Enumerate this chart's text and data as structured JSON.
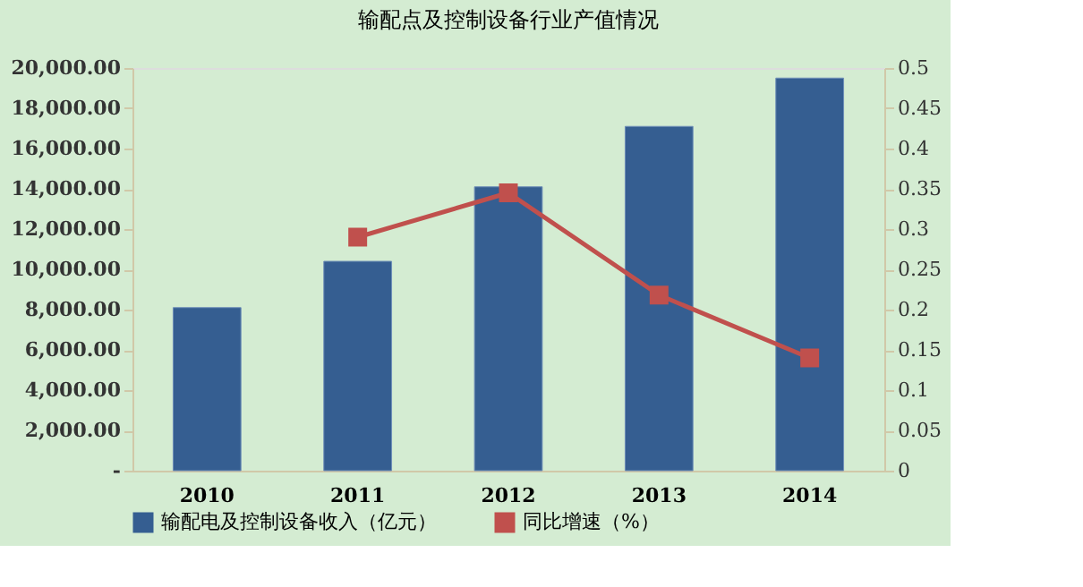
{
  "chart_data": {
    "type": "bar",
    "title": "输配点及控制设备行业产值情况",
    "categories": [
      "2010",
      "2011",
      "2012",
      "2013",
      "2014"
    ],
    "series": [
      {
        "name": "输配电及控制设备收入（亿元）",
        "color": "#355e91",
        "values": [
          8100,
          10400,
          14100,
          17100,
          19500
        ]
      },
      {
        "name": "同比增速（%）",
        "type": "line",
        "axis": "y2",
        "color": "#c0504d",
        "marker": "square",
        "values": [
          null,
          0.29,
          0.345,
          0.218,
          0.14
        ]
      }
    ],
    "ylim": [
      0,
      20000
    ],
    "yticks": [
      {
        "value": 0,
        "label": "-"
      },
      {
        "value": 2000,
        "label": "2,000.00"
      },
      {
        "value": 4000,
        "label": "4,000.00"
      },
      {
        "value": 6000,
        "label": "6,000.00"
      },
      {
        "value": 8000,
        "label": "8,000.00"
      },
      {
        "value": 10000,
        "label": "10,000.00"
      },
      {
        "value": 12000,
        "label": "12,000.00"
      },
      {
        "value": 14000,
        "label": "14,000.00"
      },
      {
        "value": 16000,
        "label": "16,000.00"
      },
      {
        "value": 18000,
        "label": "18,000.00"
      },
      {
        "value": 20000,
        "label": "20,000.00"
      }
    ],
    "y2lim": [
      0,
      0.5
    ],
    "y2ticks": [
      0,
      0.05,
      0.1,
      0.15,
      0.2,
      0.25,
      0.3,
      0.35,
      0.4,
      0.45,
      0.5
    ],
    "grid": false,
    "legend": "bottom"
  }
}
